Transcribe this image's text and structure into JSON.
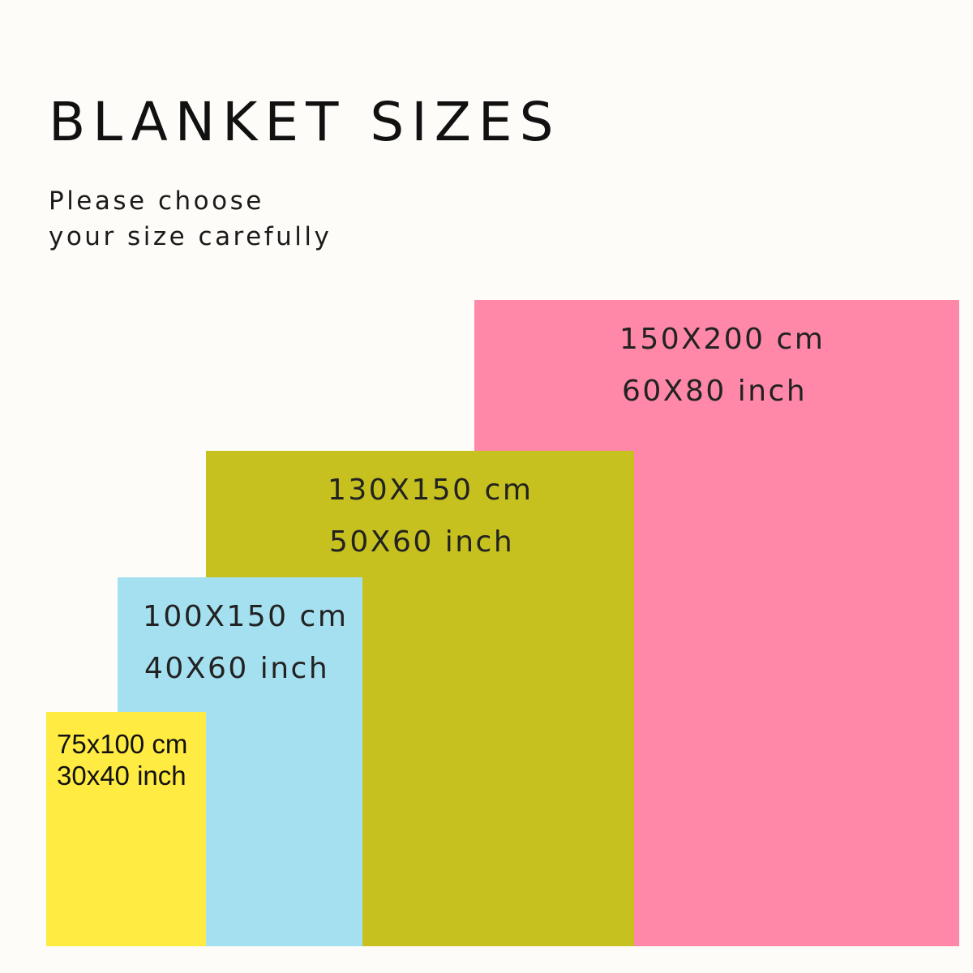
{
  "header": {
    "title": "BLANKET SIZES",
    "subtitle_line1": "Please choose",
    "subtitle_line2": "your size carefully"
  },
  "sizes": [
    {
      "cm": "150X200 cm",
      "inch": "60X80 inch",
      "color": "#ff88a8"
    },
    {
      "cm": "130X150 cm",
      "inch": "50X60 inch",
      "color": "#c6c11f"
    },
    {
      "cm": "100X150 cm",
      "inch": "40X60 inch",
      "color": "#a5e0f0"
    },
    {
      "cm": "75x100 cm",
      "inch": "30x40 inch",
      "color": "#ffeb42"
    }
  ]
}
